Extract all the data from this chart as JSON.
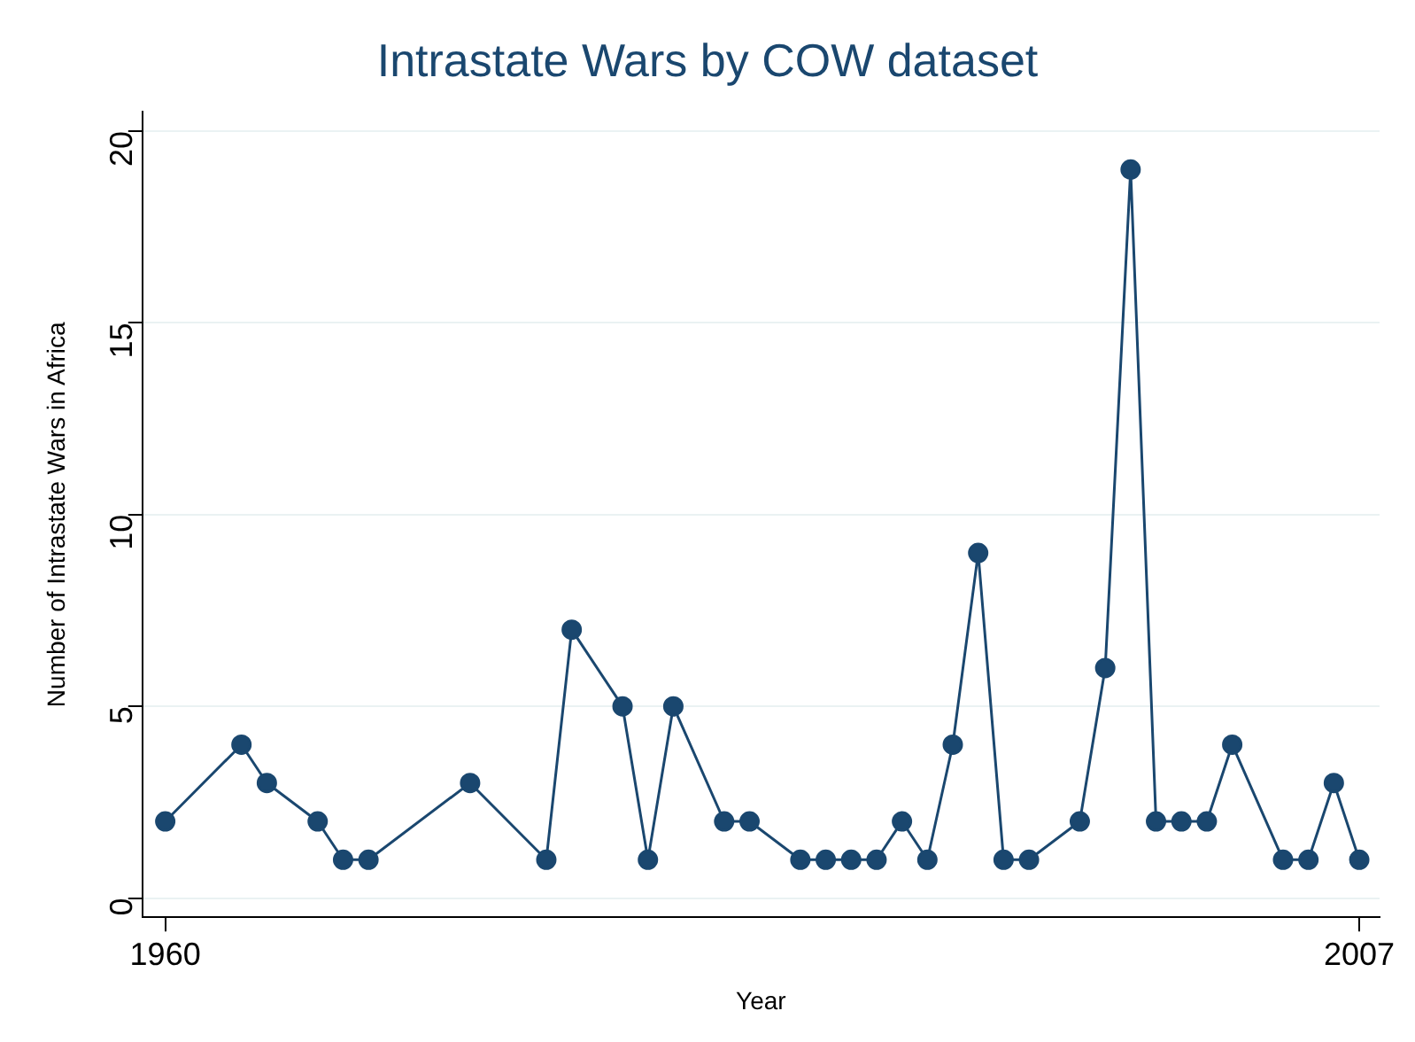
{
  "chart_data": {
    "type": "line",
    "title": "Intrastate Wars by COW dataset",
    "xlabel": "Year",
    "ylabel": "Number of Intrastate Wars in Africa",
    "x": [
      1960,
      1963,
      1964,
      1966,
      1967,
      1968,
      1972,
      1975,
      1976,
      1978,
      1979,
      1980,
      1982,
      1983,
      1985,
      1986,
      1987,
      1988,
      1989,
      1990,
      1991,
      1992,
      1993,
      1994,
      1996,
      1997,
      1998,
      1999,
      2000,
      2001,
      2002,
      2004,
      2005,
      2006,
      2007
    ],
    "series": [
      {
        "color": "#1a476f",
        "values": [
          2,
          4,
          3,
          2,
          1,
          1,
          3,
          1,
          7,
          5,
          1,
          5,
          2,
          2,
          1,
          1,
          1,
          1,
          2,
          1,
          4,
          9,
          1,
          1,
          2,
          6,
          19,
          2,
          2,
          2,
          4,
          1,
          1,
          3,
          1
        ]
      }
    ],
    "xlim": [
      1959.1,
      2007.8
    ],
    "xticks": [
      1960,
      2007
    ],
    "ylim": [
      -0.5,
      20.5
    ],
    "yticks": [
      0,
      5,
      10,
      15,
      20
    ],
    "grid": "y",
    "legend": false,
    "marker": "circle",
    "line_style": "solid"
  }
}
